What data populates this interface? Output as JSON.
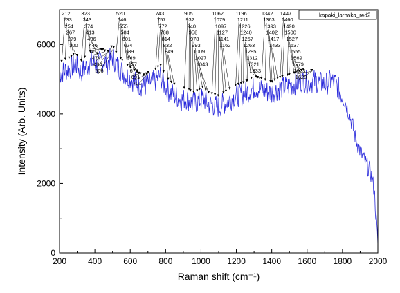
{
  "chart_data": {
    "type": "line",
    "title": "",
    "xlabel": "Raman shift (cm⁻¹)",
    "ylabel": "Intensity (Arb. Units)",
    "xlim": [
      200,
      2000
    ],
    "ylim": [
      0,
      7000
    ],
    "xticks": [
      200,
      400,
      600,
      800,
      1000,
      1200,
      1400,
      1600,
      1800,
      2000
    ],
    "yticks": [
      0,
      2000,
      4000,
      6000
    ],
    "grid": false,
    "legend_position": "top-right",
    "series": [
      {
        "name": "kapaki_larnaka_red2",
        "color": "#2a2adb",
        "x": [
          200,
          230,
          260,
          290,
          320,
          350,
          380,
          410,
          440,
          470,
          500,
          530,
          560,
          590,
          620,
          650,
          680,
          710,
          740,
          770,
          800,
          830,
          860,
          890,
          920,
          950,
          980,
          1010,
          1040,
          1070,
          1100,
          1130,
          1160,
          1190,
          1220,
          1250,
          1280,
          1310,
          1340,
          1370,
          1400,
          1430,
          1460,
          1490,
          1520,
          1550,
          1580,
          1610,
          1640,
          1670,
          1700,
          1730,
          1760,
          1790,
          1820,
          1850,
          1880,
          1910,
          1940,
          1960,
          1980,
          1990,
          2000
        ],
        "values": [
          5150,
          5250,
          5300,
          5450,
          5200,
          5350,
          5500,
          5400,
          5550,
          5450,
          5650,
          5350,
          5200,
          5050,
          4950,
          4850,
          4800,
          4900,
          4950,
          5100,
          4750,
          4600,
          4500,
          4400,
          4450,
          4300,
          4350,
          4450,
          4300,
          4250,
          4200,
          4300,
          4400,
          4500,
          4550,
          4600,
          4700,
          4750,
          4700,
          4650,
          4600,
          4700,
          4750,
          4800,
          4850,
          4900,
          4950,
          4900,
          4950,
          4900,
          4850,
          4950,
          4900,
          4600,
          4300,
          3800,
          3200,
          2800,
          2500,
          2300,
          1800,
          1000,
          250
        ]
      }
    ],
    "peak_labels": [
      {
        "label": "212",
        "x": 212
      },
      {
        "label": "233",
        "x": 233
      },
      {
        "label": "254",
        "x": 254
      },
      {
        "label": "267",
        "x": 267
      },
      {
        "label": "279",
        "x": 279
      },
      {
        "label": "300",
        "x": 300
      },
      {
        "label": "323",
        "x": 323
      },
      {
        "label": "343",
        "x": 343
      },
      {
        "label": "374",
        "x": 374
      },
      {
        "label": "413",
        "x": 413
      },
      {
        "label": "436",
        "x": 436
      },
      {
        "label": "446",
        "x": 446
      },
      {
        "label": "457",
        "x": 457
      },
      {
        "label": "474",
        "x": 474
      },
      {
        "label": "494",
        "x": 494
      },
      {
        "label": "506",
        "x": 506
      },
      {
        "label": "520",
        "x": 520
      },
      {
        "label": "546",
        "x": 546
      },
      {
        "label": "555",
        "x": 555
      },
      {
        "label": "584",
        "x": 584
      },
      {
        "label": "601",
        "x": 601
      },
      {
        "label": "624",
        "x": 624
      },
      {
        "label": "639",
        "x": 639
      },
      {
        "label": "649",
        "x": 649
      },
      {
        "label": "657",
        "x": 657
      },
      {
        "label": "677",
        "x": 677
      },
      {
        "label": "691",
        "x": 691
      },
      {
        "label": "701",
        "x": 701
      },
      {
        "label": "743",
        "x": 743
      },
      {
        "label": "757",
        "x": 757
      },
      {
        "label": "772",
        "x": 772
      },
      {
        "label": "788",
        "x": 788
      },
      {
        "label": "814",
        "x": 814
      },
      {
        "label": "832",
        "x": 832
      },
      {
        "label": "849",
        "x": 849
      },
      {
        "label": "905",
        "x": 905
      },
      {
        "label": "932",
        "x": 932
      },
      {
        "label": "940",
        "x": 940
      },
      {
        "label": "958",
        "x": 958
      },
      {
        "label": "978",
        "x": 978
      },
      {
        "label": "993",
        "x": 993
      },
      {
        "label": "1009",
        "x": 1009
      },
      {
        "label": "1027",
        "x": 1027
      },
      {
        "label": "1043",
        "x": 1043
      },
      {
        "label": "1062",
        "x": 1062
      },
      {
        "label": "1079",
        "x": 1079
      },
      {
        "label": "1097",
        "x": 1097
      },
      {
        "label": "1127",
        "x": 1127
      },
      {
        "label": "1141",
        "x": 1141
      },
      {
        "label": "1162",
        "x": 1162
      },
      {
        "label": "1196",
        "x": 1196
      },
      {
        "label": "1211",
        "x": 1211
      },
      {
        "label": "1226",
        "x": 1226
      },
      {
        "label": "1240",
        "x": 1240
      },
      {
        "label": "1257",
        "x": 1257
      },
      {
        "label": "1263",
        "x": 1263
      },
      {
        "label": "1285",
        "x": 1285
      },
      {
        "label": "1312",
        "x": 1312
      },
      {
        "label": "1321",
        "x": 1321
      },
      {
        "label": "1333",
        "x": 1333
      },
      {
        "label": "1342",
        "x": 1342
      },
      {
        "label": "1363",
        "x": 1363
      },
      {
        "label": "1393",
        "x": 1393
      },
      {
        "label": "1402",
        "x": 1402
      },
      {
        "label": "1417",
        "x": 1417
      },
      {
        "label": "1433",
        "x": 1433
      },
      {
        "label": "1447",
        "x": 1447
      },
      {
        "label": "1460",
        "x": 1460
      },
      {
        "label": "1490",
        "x": 1490
      },
      {
        "label": "1500",
        "x": 1500
      },
      {
        "label": "1527",
        "x": 1527
      },
      {
        "label": "1537",
        "x": 1537
      },
      {
        "label": "1555",
        "x": 1555
      },
      {
        "label": "1569",
        "x": 1569
      },
      {
        "label": "1579",
        "x": 1579
      },
      {
        "label": "1623",
        "x": 1623
      },
      {
        "label": "1628",
        "x": 1628
      }
    ]
  }
}
